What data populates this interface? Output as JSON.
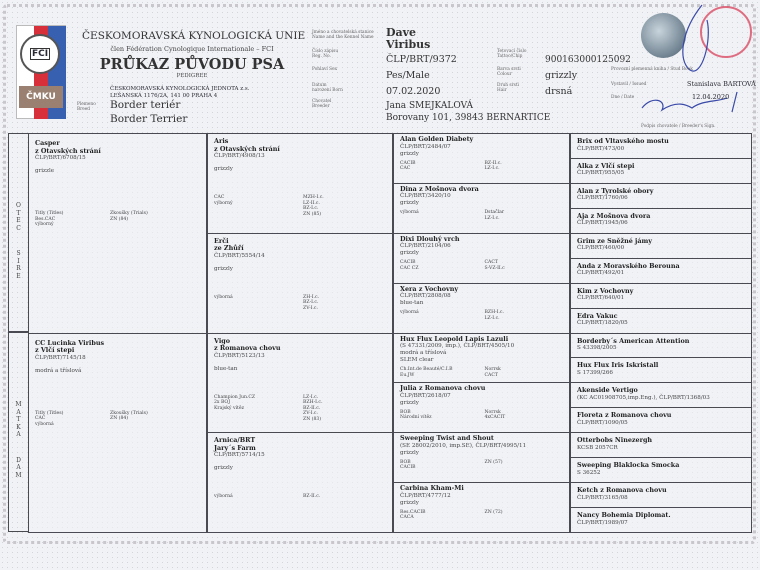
{
  "header": {
    "org_title": "ČESKOMORAVSKÁ KYNOLOGICKÁ UNIE",
    "org_sub": "člen Fédération Cynologique Internationale – FCI",
    "doc_title": "PRŮKAZ PŮVODU PSA",
    "doc_sub": "PEDIGREE",
    "club_line1": "ČESKOMORAVSKÁ KYNOLOGICKÁ JEDNOTA z.s.",
    "club_line2": "LEŠANSKÁ 1176/2A, 141 00 PRAHA 4",
    "logo_fci": "FCI",
    "logo_cmku": "ČMKU",
    "breed_label": "Plemeno Breed",
    "breed_cz": "Border teriér",
    "breed_en": "Border Terrier"
  },
  "dog": {
    "name_label": "Jméno a chovatelská stanice Name and the Kennel Name",
    "name_line1": "Dave",
    "name_line2": "Viribus",
    "reg_label": "Číslo zápisu Reg. No.",
    "reg": "ČLP/BRT/9372",
    "sex_label": "Pohlaví Sex",
    "sex": "Pes/Male",
    "born_label": "Datum narození Born",
    "born": "07.02.2020",
    "breeder_label": "Chovatel Breeder",
    "breeder_name": "Jana SMEJKALOVÁ",
    "breeder_address": "Borovany 101, 39843 BERNARTICE",
    "chip_label": "Tetovací číslo Tattoo/Chip",
    "chip": "900163000125092",
    "colour_label": "Barva srsti Colour",
    "colour": "grizzly",
    "hair_label": "Druh srsti Hair",
    "hair": "drsná"
  },
  "issue": {
    "studbook_label": "Provozní plemenná kniha / Stud Book",
    "issued_label": "Vystavil / Issued",
    "issued_by": "Stanislava BARTOVÁ",
    "date_label": "Dne / Date",
    "date": "12.04.2020",
    "sign_label": "Podpis chovatele / Breeder's Sign."
  },
  "side": {
    "sire": [
      "O",
      "T",
      "E",
      "C"
    ],
    "sire_en": [
      "S",
      "I",
      "R",
      "E"
    ],
    "dam": [
      "M",
      "A",
      "T",
      "K",
      "A"
    ],
    "dam_en": [
      "D",
      "A",
      "M"
    ]
  },
  "pedigree": {
    "titles_label": "Titly (Titles)",
    "trials_label": "Zkoušky (Trials)",
    "gen1": [
      {
        "name": [
          "Casper",
          "z Otavských strání"
        ],
        "reg": "ČLP/BRT/6708/15",
        "colour": "grizzle",
        "left": [
          "Bes.CAC",
          "výborný"
        ],
        "right": [
          "ZN (84)"
        ]
      },
      {
        "name": [
          "CC Lucinka Viribus",
          "z Vlčí stepi"
        ],
        "reg": "ČLP/BRT/7145/18",
        "colour": "modrá a tříslová",
        "left": [
          "CAC",
          "výborná"
        ],
        "right": [
          "ZN (84)"
        ]
      }
    ],
    "gen2": [
      {
        "name": [
          "Aris",
          "z Otavských strání"
        ],
        "reg": "ČLP/BRT/4908/13",
        "colour": "grizzly",
        "left": [
          "CAC",
          "výborný"
        ],
        "right": [
          "MZH-I.c.",
          "LZ-II.c.",
          "BZ-I.c.",
          "ZN (85)"
        ]
      },
      {
        "name": [
          "Erči",
          "ze Zhůří"
        ],
        "reg": "ČLP/BRT/5554/14",
        "colour": "grizzly",
        "left": [
          "výborná"
        ],
        "right": [
          "ZH-I.c.",
          "BZ-I.c.",
          "ZV-I.c."
        ]
      },
      {
        "name": [
          "Vigo",
          "z Romanova chovu"
        ],
        "reg": "ČLP/BRT/5123/13",
        "colour": "blue-tan",
        "left": [
          "Champion Jun.CZ",
          "2x BOJ",
          "Krajský vítěz"
        ],
        "right": [
          "LZ-I.c.",
          "BZH-I.c.",
          "BZ-II.c.",
          "ZV-I.c.",
          "ZN (83)"
        ]
      },
      {
        "name": [
          "Arnica/BRT",
          "Jary´s Farm"
        ],
        "reg": "ČLP/BRT/5714/15",
        "colour": "grizzly",
        "left": [
          "výborná"
        ],
        "right": [
          "BZ-II.c."
        ]
      }
    ],
    "gen3": [
      {
        "name": [
          "Alan Golden Diabety"
        ],
        "reg": "ČLP/BRT/2484/07",
        "colour": "grizzly",
        "left": [
          "CACIB",
          "CAC"
        ],
        "right": [
          "BZ-II.c.",
          "LZ-I.c."
        ]
      },
      {
        "name": [
          "Dina z Mošnova dvora"
        ],
        "reg": "ČLP/BRT/3420/10",
        "colour": "grizzly",
        "left": [
          "výborná"
        ],
        "right": [
          "Dstačlar",
          "LZ-I.c."
        ]
      },
      {
        "name": [
          "Dixi Dlouhý vrch"
        ],
        "reg": "ČLP/BRT/2104/06",
        "colour": "grizzly",
        "left": [
          "CACIB",
          "CAC CZ"
        ],
        "right": [
          "CACT",
          "S-VZ-II.c"
        ]
      },
      {
        "name": [
          "Xera z Vochovny"
        ],
        "reg": "ČLP/BRT/2808/08",
        "colour": "blue-tan",
        "left": [
          "výborná"
        ],
        "right": [
          "BZH-I.c.",
          "LZ-I.c."
        ]
      },
      {
        "name": [
          "Hux Flux Leopold Lapis Lazuli"
        ],
        "reg": "(S 47331/2009, imp.), ČLP/BRT/4505/10",
        "colour": "modrá a tříslová",
        "extra": "SLEM clear",
        "left": [
          "Ch.Int.de Beauté/C.I.B",
          "Eu.JW"
        ],
        "right": [
          "Norrsk",
          "CACT"
        ]
      },
      {
        "name": [
          "Julia z Romanova chovu"
        ],
        "reg": "ČLP/BRT/2618/07",
        "colour": "grizzly",
        "left": [
          "BOB",
          "Národní vítěz"
        ],
        "right": [
          "Norrsk",
          "4xCACIT"
        ]
      },
      {
        "name": [
          "Sweeping Twist and Shout"
        ],
        "reg": "(SE 28002/2010, imp.SE), ČLP/BRT/4995/11",
        "colour": "grizzly",
        "left": [
          "BOB",
          "CACIB"
        ],
        "right": [
          "ZN (57)"
        ]
      },
      {
        "name": [
          "Carbina Kham-Mi"
        ],
        "reg": "ČLP/BRT/4777/12",
        "colour": "grizzly",
        "left": [
          "Res.CACIB",
          "CACA"
        ],
        "right": [
          "ZN (72)"
        ]
      }
    ],
    "gen4": [
      {
        "name": "Brix od Vltavského mostu",
        "reg": "ČLP/BRT/473/00"
      },
      {
        "name": "Alka z Vlčí stepi",
        "reg": "ČLP/BRT/955/05"
      },
      {
        "name": "Alan z Tyrolské obory",
        "reg": "ČLP/BRT/1760/06"
      },
      {
        "name": "Aja z Mošnova dvora",
        "reg": "ČLP/BRT/1945/06"
      },
      {
        "name": "Grim ze Sněžné jámy",
        "reg": "ČLP/BRT/460/00"
      },
      {
        "name": "Anda z Moravského Berouna",
        "reg": "ČLP/BRT/492/01"
      },
      {
        "name": "Kim z Vochovny",
        "reg": "ČLP/BRT/640/01"
      },
      {
        "name": "Edra Vakuc",
        "reg": "ČLP/BRT/1820/05"
      },
      {
        "name": "Borderby´s American Attention",
        "reg": "S 43398/2005"
      },
      {
        "name": "Hux Flux Iris Iskristall",
        "reg": "S 17399/266"
      },
      {
        "name": "Akenside Vertigo",
        "reg": "(KC AC01908705,imp.Eng.), ČLP/BRT/1368/03"
      },
      {
        "name": "Floreta z Romanova chovu",
        "reg": "ČLP/BRT/1090/05"
      },
      {
        "name": "Otterbobs Ninezergh",
        "reg": "KCSB 2057CR"
      },
      {
        "name": "Sweeping Blaklocka Smocka",
        "reg": "S 36252"
      },
      {
        "name": "Ketch z Romanova chovu",
        "reg": "ČLP/BRT/3165/08"
      },
      {
        "name": "Nancy Bohemia Diplomat.",
        "reg": "ČLP/BRT/1989/07"
      }
    ]
  },
  "colors": {
    "logo_red": "#d8303a",
    "logo_blue": "#3760b0",
    "logo_tan": "#9a8070",
    "stamp_red": "#d8405a",
    "signature_blue": "#3a4aa8"
  }
}
